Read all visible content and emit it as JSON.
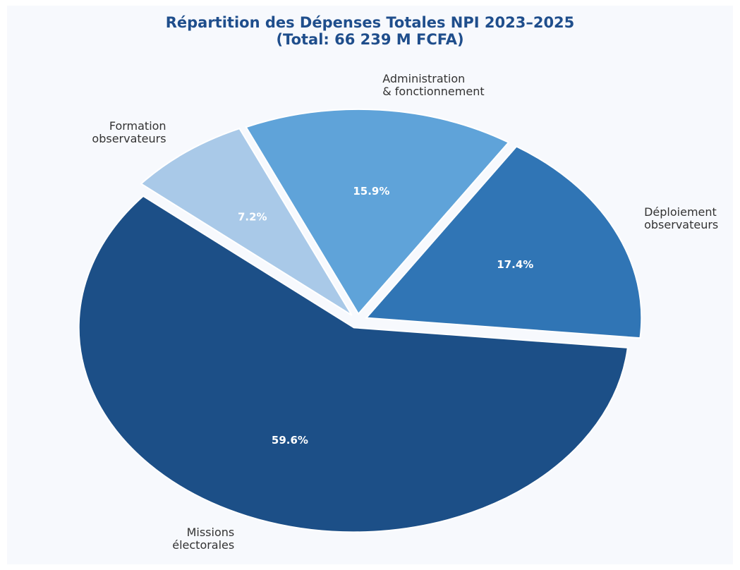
{
  "chart_data": {
    "type": "pie",
    "title": "Répartition des Dépenses Totales NPI 2023–2025\n(Total: 66 239 M FCFA)",
    "categories": [
      "Missions\nélectorales",
      "Déploiement\nobservateurs",
      "Administration\n& fonctionnement",
      "Formation\nobservateurs"
    ],
    "values": [
      59.6,
      17.4,
      15.9,
      7.2
    ],
    "value_labels": [
      "59.6%",
      "17.4%",
      "15.9%",
      "7.2%"
    ],
    "colors": [
      "#1c4f87",
      "#3075b5",
      "#5fa3d9",
      "#a9c9e8"
    ]
  }
}
